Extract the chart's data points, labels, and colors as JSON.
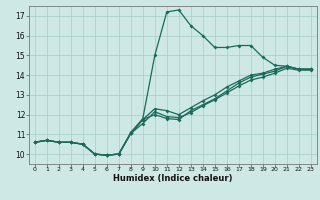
{
  "xlabel": "Humidex (Indice chaleur)",
  "bg_color": "#cde8e5",
  "grid_color": "#a8ceca",
  "line_color": "#1a6b5a",
  "xlim": [
    -0.5,
    23.5
  ],
  "ylim": [
    9.5,
    17.5
  ],
  "xticks": [
    0,
    1,
    2,
    3,
    4,
    5,
    6,
    7,
    8,
    9,
    10,
    11,
    12,
    13,
    14,
    15,
    16,
    17,
    18,
    19,
    20,
    21,
    22,
    23
  ],
  "yticks": [
    10,
    11,
    12,
    13,
    14,
    15,
    16,
    17
  ],
  "line1_x": [
    0,
    1,
    2,
    3,
    4,
    5,
    6,
    7,
    8,
    9,
    10,
    11,
    12,
    13,
    14,
    15,
    16,
    17,
    18,
    19,
    20,
    21,
    22,
    23
  ],
  "line1_y": [
    10.6,
    10.7,
    10.6,
    10.6,
    10.5,
    10.0,
    9.95,
    10.0,
    11.1,
    11.8,
    15.0,
    17.2,
    17.3,
    16.5,
    16.0,
    15.4,
    15.4,
    15.5,
    15.5,
    14.9,
    14.5,
    14.45,
    14.3,
    14.3
  ],
  "line2_x": [
    0,
    1,
    2,
    3,
    4,
    5,
    6,
    7,
    8,
    9,
    10,
    11,
    12,
    13,
    14,
    15,
    16,
    17,
    18,
    19,
    20,
    21,
    22,
    23
  ],
  "line2_y": [
    10.6,
    10.7,
    10.6,
    10.6,
    10.5,
    10.0,
    9.95,
    10.0,
    11.05,
    11.75,
    12.0,
    11.8,
    11.75,
    12.2,
    12.5,
    12.8,
    13.2,
    13.6,
    13.9,
    14.05,
    14.2,
    14.45,
    14.3,
    14.3
  ],
  "line3_x": [
    0,
    1,
    2,
    3,
    4,
    5,
    6,
    7,
    8,
    9,
    10,
    11,
    12,
    13,
    14,
    15,
    16,
    17,
    18,
    19,
    20,
    21,
    22,
    23
  ],
  "line3_y": [
    10.6,
    10.7,
    10.6,
    10.6,
    10.5,
    10.0,
    9.95,
    10.0,
    11.05,
    11.75,
    12.3,
    12.2,
    12.0,
    12.35,
    12.7,
    13.0,
    13.4,
    13.7,
    14.0,
    14.1,
    14.3,
    14.45,
    14.3,
    14.3
  ],
  "line4_x": [
    0,
    1,
    2,
    3,
    4,
    5,
    6,
    7,
    8,
    9,
    10,
    11,
    12,
    13,
    14,
    15,
    16,
    17,
    18,
    19,
    20,
    21,
    22,
    23
  ],
  "line4_y": [
    10.6,
    10.7,
    10.6,
    10.6,
    10.5,
    10.0,
    9.95,
    10.0,
    11.05,
    11.55,
    12.15,
    11.9,
    11.85,
    12.1,
    12.45,
    12.75,
    13.1,
    13.45,
    13.75,
    13.9,
    14.1,
    14.35,
    14.25,
    14.25
  ]
}
